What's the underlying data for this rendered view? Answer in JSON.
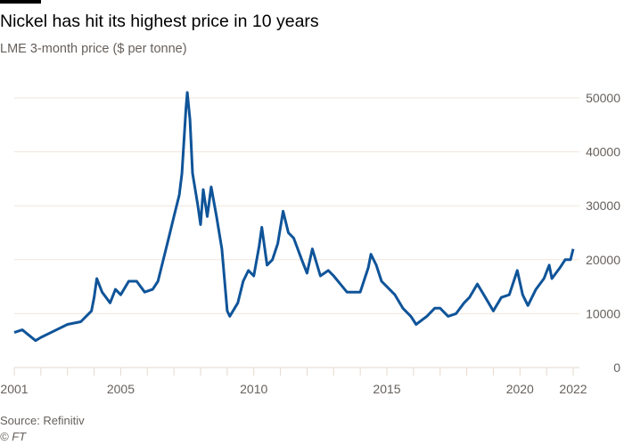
{
  "chart_data": {
    "type": "line",
    "title": "Nickel has hit its highest price in 10 years",
    "subtitle": "LME 3-month price ($ per tonne)",
    "xlabel": "",
    "ylabel": "",
    "xlim": [
      2001,
      2022
    ],
    "ylim": [
      0,
      50000
    ],
    "x_ticks": [
      2001,
      2005,
      2010,
      2015,
      2020,
      2022
    ],
    "y_ticks": [
      0,
      10000,
      20000,
      30000,
      40000,
      50000
    ],
    "grid": true,
    "line_color": "#0f5499",
    "series": [
      {
        "name": "LME 3-month nickel price",
        "x": [
          2001.0,
          2001.3,
          2001.5,
          2001.8,
          2002.0,
          2002.5,
          2003.0,
          2003.5,
          2003.9,
          2004.0,
          2004.1,
          2004.3,
          2004.6,
          2004.8,
          2005.0,
          2005.3,
          2005.6,
          2005.9,
          2006.2,
          2006.4,
          2006.6,
          2006.8,
          2007.0,
          2007.2,
          2007.3,
          2007.45,
          2007.5,
          2007.6,
          2007.7,
          2007.9,
          2008.0,
          2008.1,
          2008.25,
          2008.4,
          2008.6,
          2008.8,
          2009.0,
          2009.1,
          2009.4,
          2009.6,
          2009.8,
          2010.0,
          2010.2,
          2010.3,
          2010.5,
          2010.7,
          2010.9,
          2011.1,
          2011.3,
          2011.5,
          2011.8,
          2012.0,
          2012.2,
          2012.5,
          2012.8,
          2013.0,
          2013.5,
          2014.0,
          2014.3,
          2014.4,
          2014.6,
          2014.8,
          2015.0,
          2015.3,
          2015.6,
          2015.9,
          2016.1,
          2016.5,
          2016.8,
          2017.0,
          2017.3,
          2017.6,
          2017.9,
          2018.1,
          2018.4,
          2018.7,
          2019.0,
          2019.3,
          2019.6,
          2019.9,
          2020.1,
          2020.3,
          2020.6,
          2020.9,
          2021.1,
          2021.2,
          2021.5,
          2021.7,
          2021.9,
          2022.0
        ],
        "values": [
          6500,
          7000,
          6200,
          5000,
          5600,
          6800,
          8000,
          8500,
          10500,
          13000,
          16500,
          14000,
          12000,
          14500,
          13500,
          16000,
          16000,
          14000,
          14500,
          16000,
          20000,
          24000,
          28000,
          32000,
          36000,
          48000,
          51000,
          46000,
          36000,
          30000,
          26500,
          33000,
          28000,
          33500,
          28000,
          22000,
          10500,
          9500,
          12000,
          16000,
          18000,
          17000,
          22500,
          26000,
          19000,
          20000,
          23000,
          29000,
          25000,
          24000,
          20000,
          17500,
          22000,
          17000,
          18000,
          17000,
          14000,
          14000,
          18500,
          21000,
          19000,
          16000,
          15000,
          13500,
          11000,
          9500,
          8000,
          9500,
          11000,
          11000,
          9500,
          10000,
          12000,
          13000,
          15500,
          13000,
          10500,
          13000,
          13500,
          18000,
          13500,
          11500,
          14500,
          16500,
          19000,
          16500,
          18500,
          20000,
          20000,
          22000
        ]
      }
    ]
  },
  "footer": {
    "source": "Source: Refinitiv",
    "copyright": "© FT"
  }
}
